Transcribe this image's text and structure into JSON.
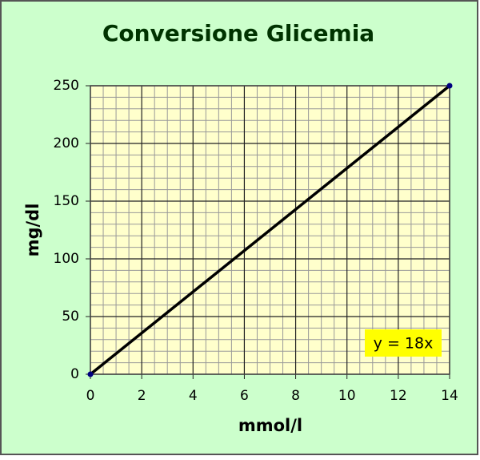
{
  "chart_data": {
    "type": "line",
    "title": "Conversione Glicemia",
    "x_label": "mmol/l",
    "y_label": "mg/dl",
    "x": [
      0,
      14
    ],
    "series": [
      {
        "values": [
          0,
          250
        ],
        "color": "#000000",
        "marker_color": "#000080"
      }
    ],
    "xlim": [
      0,
      14
    ],
    "xticks": [
      0,
      2,
      4,
      6,
      8,
      10,
      12,
      14
    ],
    "ylim": [
      0,
      250
    ],
    "yticks": [
      0,
      50,
      100,
      150,
      200,
      250
    ],
    "grid": true,
    "minor_grid": {
      "x": 4,
      "y": 5
    },
    "annotation": "y = 18x",
    "background": "#ccffcc",
    "plot_background": "#ffffcc"
  }
}
